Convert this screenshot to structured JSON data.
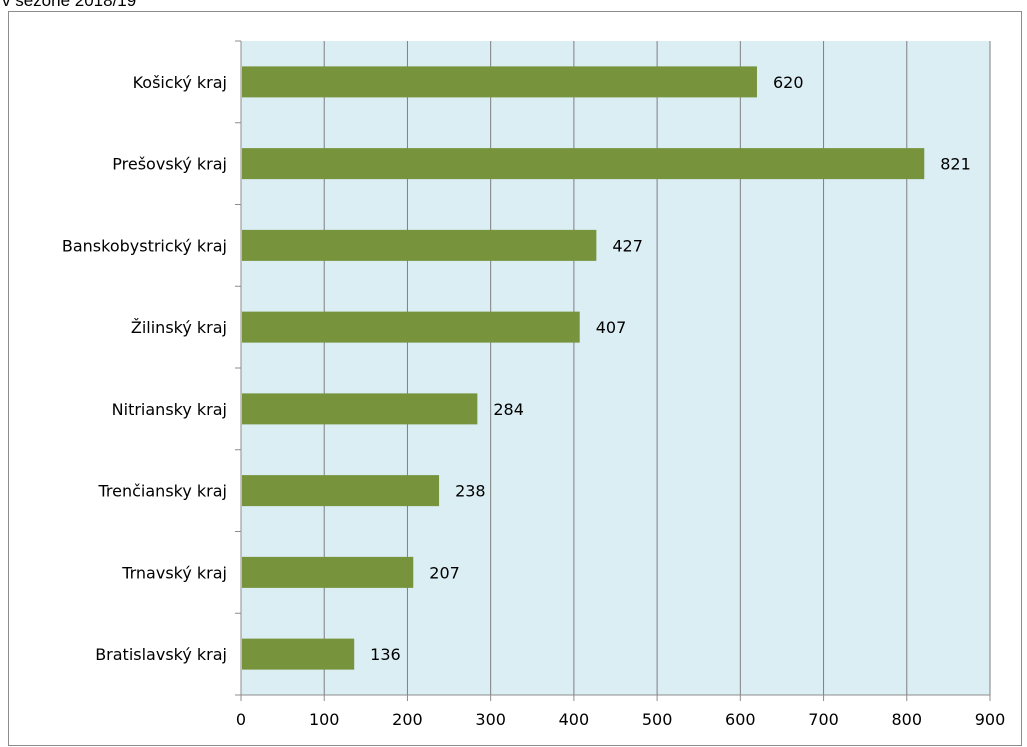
{
  "caption": "v sezóne 2018/19",
  "chart_data": {
    "type": "bar",
    "orientation": "horizontal",
    "categories": [
      "Košický kraj",
      "Prešovský kraj",
      "Banskobystrický kraj",
      "Žilinský kraj",
      "Nitriansky kraj",
      "Trenčiansky kraj",
      "Trnavský kraj",
      "Bratislavský kraj"
    ],
    "values": [
      620,
      821,
      427,
      407,
      284,
      238,
      207,
      136
    ],
    "x_ticks": [
      0,
      100,
      200,
      300,
      400,
      500,
      600,
      700,
      800,
      900
    ],
    "xlim": [
      0,
      900
    ],
    "grid": "vertical",
    "data_labels": true,
    "colors": {
      "bar": "#77933c",
      "plot_background": "#dbeef4",
      "gridline": "#7f7f7f",
      "axis": "#8c8c8c"
    }
  }
}
